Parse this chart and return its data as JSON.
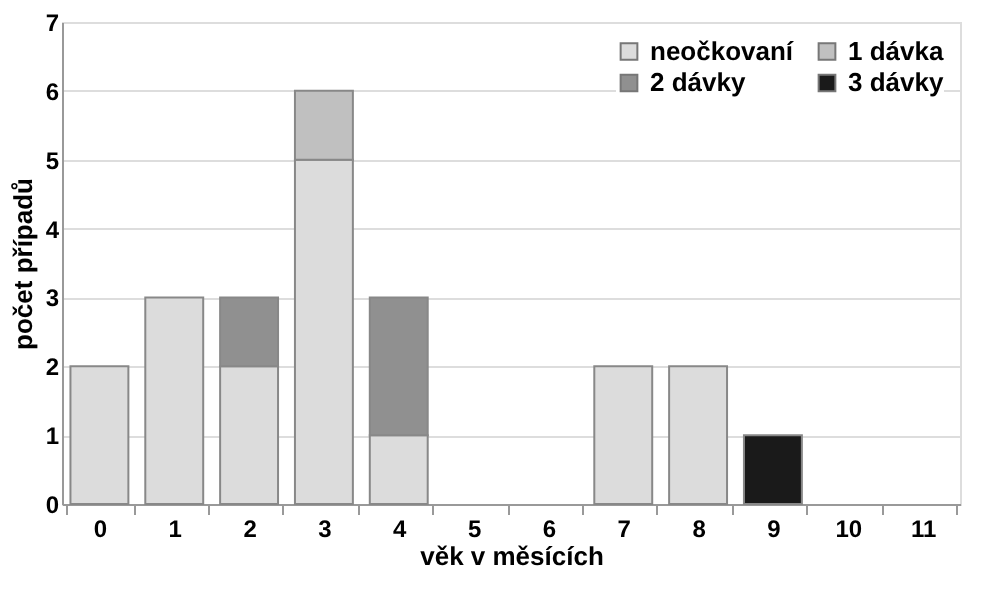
{
  "chart_data": {
    "type": "bar",
    "stacked": true,
    "xlabel": "věk v měsících",
    "ylabel": "počet případů",
    "categories": [
      "0",
      "1",
      "2",
      "3",
      "4",
      "5",
      "6",
      "7",
      "8",
      "9",
      "10",
      "11"
    ],
    "series": [
      {
        "name": "neočkovaní",
        "color": "#dcdcdc",
        "values": [
          2,
          3,
          2,
          5,
          1,
          null,
          null,
          2,
          2,
          null,
          null,
          null
        ]
      },
      {
        "name": "1 dávka",
        "color": "#c0c0c0",
        "values": [
          null,
          null,
          null,
          1,
          null,
          null,
          null,
          null,
          null,
          null,
          null,
          null
        ]
      },
      {
        "name": "2 dávky",
        "color": "#909090",
        "values": [
          null,
          null,
          1,
          null,
          2,
          null,
          null,
          null,
          null,
          null,
          null,
          null
        ]
      },
      {
        "name": "3 dávky",
        "color": "#1a1a1a",
        "values": [
          null,
          null,
          null,
          null,
          null,
          null,
          null,
          null,
          null,
          1,
          null,
          null
        ]
      }
    ],
    "ylim": [
      0,
      7
    ],
    "yticks": [
      0,
      1,
      2,
      3,
      4,
      5,
      6,
      7
    ],
    "grid": "y",
    "legend": "top right"
  }
}
